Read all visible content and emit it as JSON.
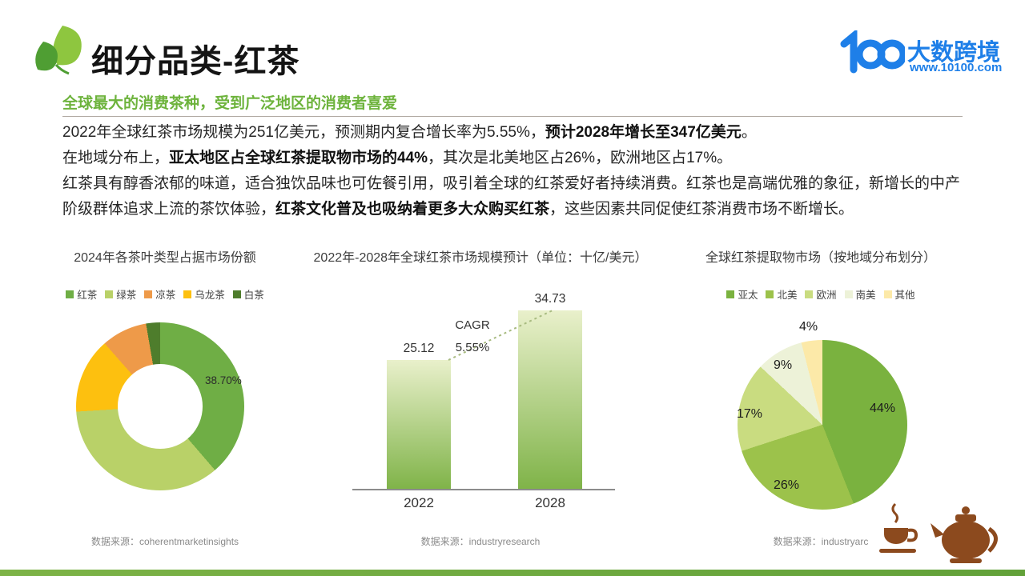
{
  "header": {
    "title": "细分品类-红茶",
    "subtitle": "全球最大的消费茶种，受到广泛地区的消费者喜爱",
    "brand": {
      "name": "大数跨境",
      "url": "www.10100.com",
      "mark": "100"
    }
  },
  "colors": {
    "brand_blue": "#1e7fe8",
    "accent_green": "#6db33c",
    "footer_green": "#6fab42",
    "tea_icon_brown": "#8c4a1e"
  },
  "intro": {
    "p1": [
      {
        "t": "2022年全球红茶市场规模为251亿美元，预测期内复合增长率为5.55%，"
      },
      {
        "t": "预计2028年增长至347亿美元"
      },
      {
        "t": "。"
      }
    ],
    "p2": [
      {
        "t": "在地域分布上，"
      },
      {
        "t": "亚太地区占全球红茶提取物市场的44%"
      },
      {
        "t": "，其次是北美地区占26%，欧洲地区占17%。"
      }
    ],
    "p3": [
      {
        "t": "红茶具有醇香浓郁的味道，适合独饮品味也可佐餐引用，吸引着全球的红茶爱好者持续消费。红茶也是高端优雅的象征，新增长的中产阶级群体追求上流的茶饮体验，"
      },
      {
        "t": "红茶文化普及也吸纳着更多大众购买红茶"
      },
      {
        "t": "，这些因素共同促使红茶消费市场不断增长。"
      }
    ]
  },
  "chart_data": [
    {
      "type": "pie",
      "variant": "donut",
      "title": "2024年各茶叶类型占据市场份额",
      "legend": [
        {
          "label": "红茶",
          "color": "#6fae45"
        },
        {
          "label": "绿茶",
          "color": "#b9d168"
        },
        {
          "label": "凉茶",
          "color": "#ee9a49"
        },
        {
          "label": "乌龙茶",
          "color": "#fdc00f"
        },
        {
          "label": "白茶",
          "color": "#4e7d2c"
        }
      ],
      "slices": [
        {
          "label": "红茶",
          "value": 38.7,
          "color": "#6fae45"
        },
        {
          "label": "绿茶",
          "value": 35.3,
          "color": "#b9d168"
        },
        {
          "label": "乌龙茶",
          "value": 14.5,
          "color": "#fdc00f"
        },
        {
          "label": "凉茶",
          "value": 8.8,
          "color": "#ee9a49"
        },
        {
          "label": "白茶",
          "value": 2.7,
          "color": "#4e7d2c"
        }
      ],
      "callout_label": "38.70%",
      "source": "数据来源：coherentmarketinsights"
    },
    {
      "type": "bar",
      "title": "2022年-2028年全球红茶市场规模预计（单位：十亿/美元）",
      "categories": [
        "2022",
        "2028"
      ],
      "values": [
        25.12,
        34.73
      ],
      "cagr": {
        "label": "CAGR",
        "value": "5.55%"
      },
      "bar_gradient": [
        "#e9f0cb",
        "#7fb348"
      ],
      "ylim": [
        0,
        40
      ],
      "source": "数据来源：industryresearch"
    },
    {
      "type": "pie",
      "title": "全球红茶提取物市场（按地域分布划分）",
      "legend": [
        {
          "label": "亚太",
          "color": "#7ab23f"
        },
        {
          "label": "北美",
          "color": "#9cc24b"
        },
        {
          "label": "欧洲",
          "color": "#c9dc80"
        },
        {
          "label": "南美",
          "color": "#edf2d8"
        },
        {
          "label": "其他",
          "color": "#fce9a8"
        }
      ],
      "slices": [
        {
          "label": "亚太",
          "value": 44,
          "pct": "44%",
          "color": "#7ab23f"
        },
        {
          "label": "北美",
          "value": 26,
          "pct": "26%",
          "color": "#9cc24b"
        },
        {
          "label": "欧洲",
          "value": 17,
          "pct": "17%",
          "color": "#c9dc80"
        },
        {
          "label": "南美",
          "value": 9,
          "pct": "9%",
          "color": "#edf2d8"
        },
        {
          "label": "其他",
          "value": 4,
          "pct": "4%",
          "color": "#fce9a8"
        }
      ],
      "source": "数据来源：industryarc"
    }
  ]
}
